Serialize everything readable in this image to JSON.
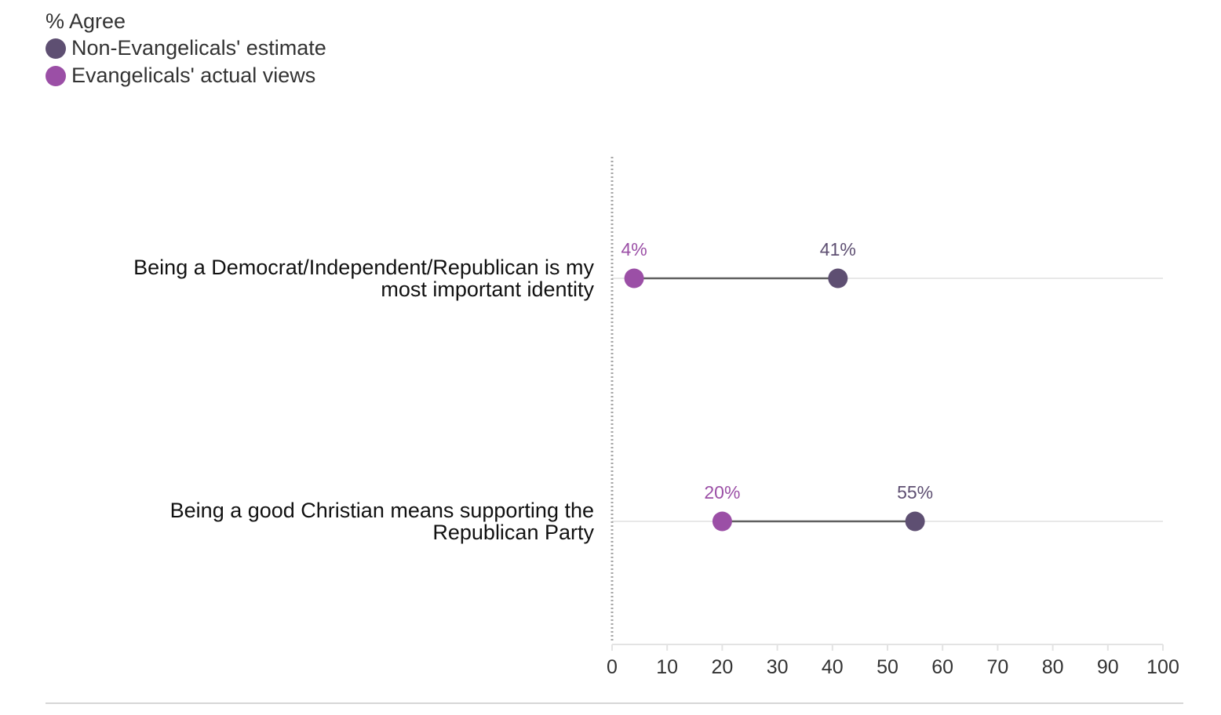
{
  "chart_data": {
    "type": "dot-range",
    "title": "",
    "legend_title": "% Agree",
    "legend_position": "top-left",
    "xlim": [
      0,
      100
    ],
    "xticks": [
      0,
      10,
      20,
      30,
      40,
      50,
      60,
      70,
      80,
      90,
      100
    ],
    "grid": false,
    "categories": [
      [
        "Being a Democrat/Independent/Republican is my",
        "most important identity"
      ],
      [
        "Being a good Christian means supporting the",
        "Republican Party"
      ]
    ],
    "series": [
      {
        "name": "Non-Evangelicals' estimate",
        "color": "#5e4f72",
        "values": [
          41,
          55
        ],
        "labels": [
          "41%",
          "55%"
        ]
      },
      {
        "name": "Evangelicals' actual views",
        "color": "#9b4fa6",
        "values": [
          4,
          20
        ],
        "labels": [
          "4%",
          "20%"
        ]
      }
    ]
  }
}
